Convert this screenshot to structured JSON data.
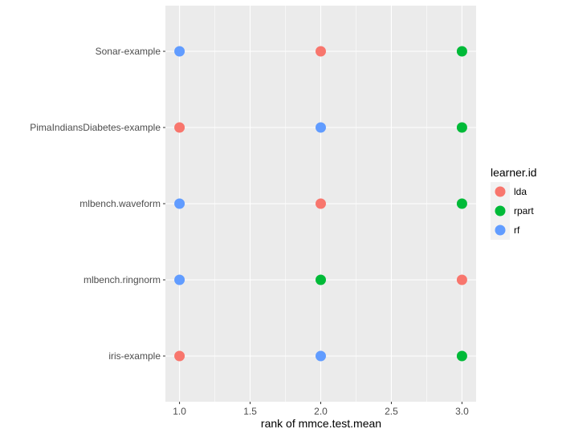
{
  "chart_data": {
    "type": "scatter",
    "title": "",
    "xlabel": "rank of mmce.test.mean",
    "ylabel": "",
    "xlim": [
      0.9,
      3.1
    ],
    "x_ticks": [
      "1.0",
      "1.5",
      "2.0",
      "2.5",
      "3.0"
    ],
    "categories": [
      "Sonar-example",
      "PimaIndiansDiabetes-example",
      "mlbench.waveform",
      "mlbench.ringnorm",
      "iris-example"
    ],
    "legend": {
      "title": "learner.id",
      "position": "right"
    },
    "series": [
      {
        "name": "lda",
        "color": "#F8766D",
        "values": [
          2,
          1,
          2,
          3,
          1
        ]
      },
      {
        "name": "rpart",
        "color": "#00BA38",
        "values": [
          3,
          3,
          3,
          2,
          3
        ]
      },
      {
        "name": "rf",
        "color": "#619CFF",
        "values": [
          1,
          2,
          1,
          1,
          2
        ]
      }
    ],
    "grid": true,
    "panel_color": "#EBEBEB"
  }
}
